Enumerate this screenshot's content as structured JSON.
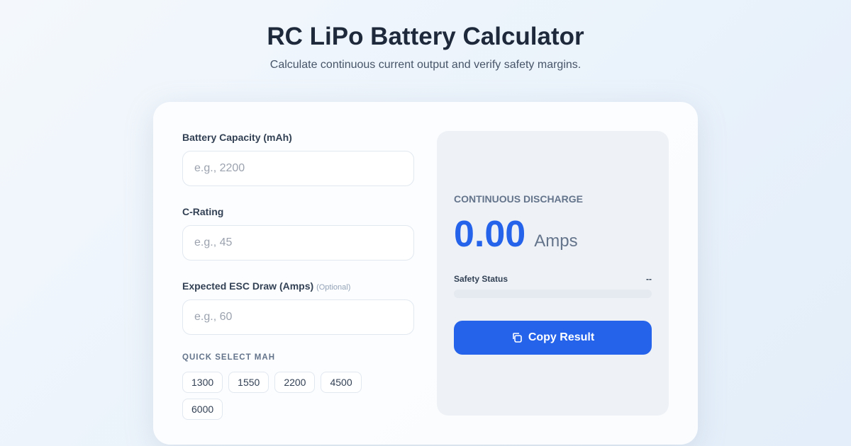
{
  "header": {
    "title": "RC LiPo Battery Calculator",
    "subtitle": "Calculate continuous current output and verify safety margins."
  },
  "form": {
    "capacity": {
      "label": "Battery Capacity (mAh)",
      "placeholder": "e.g., 2200",
      "value": ""
    },
    "c_rating": {
      "label": "C-Rating",
      "placeholder": "e.g., 45",
      "value": ""
    },
    "esc": {
      "label": "Expected ESC Draw (Amps)",
      "optional": "(Optional)",
      "placeholder": "e.g., 60",
      "value": ""
    },
    "quick_select": {
      "label": "QUICK SELECT MAH",
      "options": [
        "1300",
        "1550",
        "2200",
        "4500",
        "6000"
      ]
    }
  },
  "result": {
    "label": "CONTINUOUS DISCHARGE",
    "value": "0.00",
    "unit": "Amps",
    "safety_label": "Safety Status",
    "safety_value": "--",
    "safety_progress": 0,
    "copy_label": "Copy Result",
    "copy_icon": "copy-icon"
  },
  "colors": {
    "accent": "#2563eb"
  }
}
